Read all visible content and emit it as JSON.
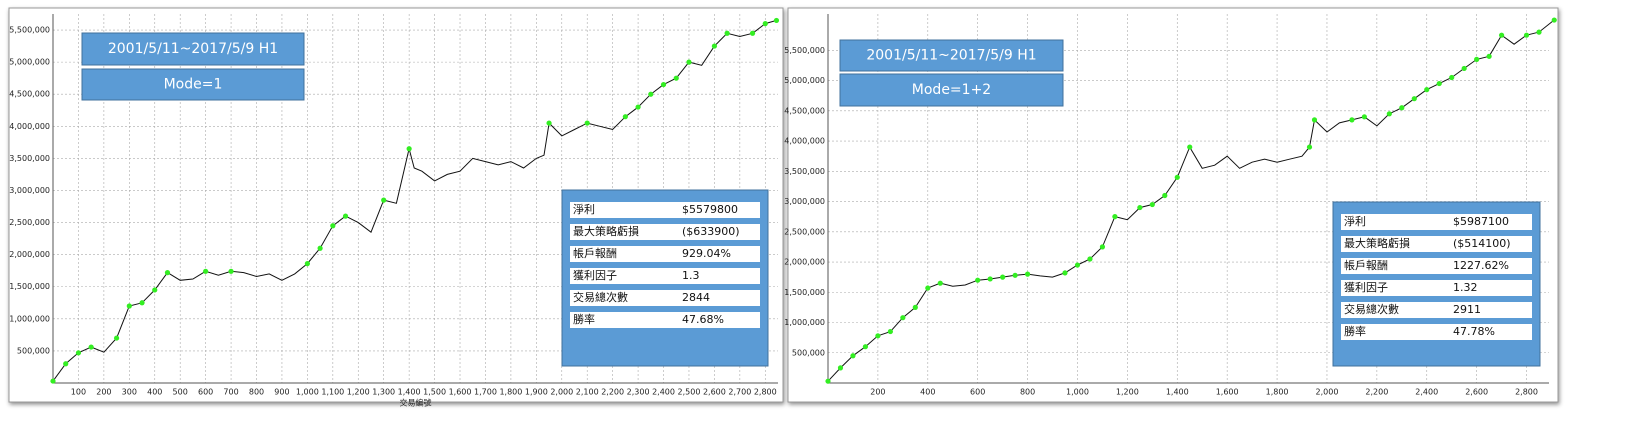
{
  "chart_data": [
    {
      "type": "line",
      "annotations": [
        "2001/5/11~2017/5/9 H1",
        "Mode=1"
      ],
      "x_label": "交易編號",
      "x": [
        0,
        50,
        100,
        150,
        200,
        250,
        300,
        350,
        400,
        450,
        500,
        550,
        600,
        650,
        700,
        750,
        800,
        850,
        900,
        950,
        1000,
        1050,
        1100,
        1150,
        1200,
        1250,
        1300,
        1350,
        1400,
        1420,
        1450,
        1500,
        1550,
        1600,
        1650,
        1700,
        1750,
        1800,
        1850,
        1900,
        1930,
        1950,
        2000,
        2050,
        2100,
        2150,
        2200,
        2250,
        2300,
        2350,
        2400,
        2450,
        2500,
        2550,
        2600,
        2650,
        2700,
        2750,
        2800,
        2844
      ],
      "series": [
        {
          "color": "#111111",
          "new_high_color": "#33ee22",
          "values": [
            30000,
            300000,
            470000,
            560000,
            480000,
            700000,
            1200000,
            1250000,
            1450000,
            1720000,
            1600000,
            1620000,
            1740000,
            1680000,
            1740000,
            1720000,
            1660000,
            1700000,
            1600000,
            1700000,
            1860000,
            2100000,
            2450000,
            2600000,
            2500000,
            2350000,
            2850000,
            2800000,
            3650000,
            3350000,
            3300000,
            3150000,
            3250000,
            3300000,
            3500000,
            3450000,
            3400000,
            3450000,
            3350000,
            3500000,
            3550000,
            4050000,
            3850000,
            3950000,
            4050000,
            4000000,
            3950000,
            4150000,
            4300000,
            4500000,
            4650000,
            4750000,
            5000000,
            4950000,
            5250000,
            5450000,
            5400000,
            5450000,
            5600000,
            5650000
          ]
        }
      ],
      "xlim": [
        0,
        2850
      ],
      "ylim": [
        0,
        5750000
      ],
      "grid": true,
      "xticks": [
        100,
        200,
        300,
        400,
        500,
        600,
        700,
        800,
        900,
        {
          "value": 1000,
          "label": "1,000"
        },
        {
          "value": 1100,
          "label": "1,100"
        },
        {
          "value": 1200,
          "label": "1,200"
        },
        {
          "value": 1300,
          "label": "1,300"
        },
        {
          "value": 1400,
          "label": "1,400"
        },
        {
          "value": 1500,
          "label": "1,500"
        },
        {
          "value": 1600,
          "label": "1,600"
        },
        {
          "value": 1700,
          "label": "1,700"
        },
        {
          "value": 1800,
          "label": "1,800"
        },
        {
          "value": 1900,
          "label": "1,900"
        },
        {
          "value": 2000,
          "label": "2,000"
        },
        {
          "value": 2100,
          "label": "2,100"
        },
        {
          "value": 2200,
          "label": "2,200"
        },
        {
          "value": 2300,
          "label": "2,300"
        },
        {
          "value": 2400,
          "label": "2,400"
        },
        {
          "value": 2500,
          "label": "2,500"
        },
        {
          "value": 2600,
          "label": "2,600"
        },
        {
          "value": 2700,
          "label": "2,700"
        },
        {
          "value": 2800,
          "label": "2,800"
        }
      ],
      "yticks": [
        {
          "value": 500000,
          "label": "500,000"
        },
        {
          "value": 1000000,
          "label": "1,000,000"
        },
        {
          "value": 1500000,
          "label": "1,500,000"
        },
        {
          "value": 2000000,
          "label": "2,000,000"
        },
        {
          "value": 2500000,
          "label": "2,500,000"
        },
        {
          "value": 3000000,
          "label": "3,000,000"
        },
        {
          "value": 3500000,
          "label": "3,500,000"
        },
        {
          "value": 4000000,
          "label": "4,000,000"
        },
        {
          "value": 4500000,
          "label": "4,500,000"
        },
        {
          "value": 5000000,
          "label": "5,000,000"
        },
        {
          "value": 5500000,
          "label": "5,500,000"
        }
      ],
      "stats": [
        [
          "淨利",
          "$5579800"
        ],
        [
          "最大策略虧損",
          "($633900)"
        ],
        [
          "帳戶報酬",
          "929.04%"
        ],
        [
          "獲利因子",
          "1.3"
        ],
        [
          "交易總次數",
          "2844"
        ],
        [
          "勝率",
          "47.68%"
        ]
      ]
    },
    {
      "type": "line",
      "annotations": [
        "2001/5/11~2017/5/9 H1",
        "Mode=1+2"
      ],
      "x": [
        0,
        50,
        100,
        150,
        200,
        250,
        300,
        350,
        400,
        450,
        500,
        550,
        600,
        650,
        700,
        750,
        800,
        850,
        900,
        950,
        1000,
        1050,
        1100,
        1150,
        1200,
        1250,
        1300,
        1350,
        1400,
        1450,
        1500,
        1550,
        1600,
        1650,
        1700,
        1750,
        1800,
        1850,
        1900,
        1930,
        1950,
        2000,
        2050,
        2100,
        2150,
        2200,
        2250,
        2300,
        2350,
        2400,
        2450,
        2500,
        2550,
        2600,
        2650,
        2700,
        2750,
        2800,
        2850,
        2911
      ],
      "series": [
        {
          "color": "#111111",
          "new_high_color": "#33ee22",
          "values": [
            30000,
            250000,
            450000,
            600000,
            780000,
            850000,
            1080000,
            1250000,
            1570000,
            1650000,
            1600000,
            1620000,
            1700000,
            1720000,
            1750000,
            1780000,
            1800000,
            1770000,
            1750000,
            1820000,
            1950000,
            2050000,
            2250000,
            2750000,
            2700000,
            2900000,
            2950000,
            3100000,
            3400000,
            3900000,
            3550000,
            3600000,
            3750000,
            3550000,
            3650000,
            3700000,
            3650000,
            3700000,
            3750000,
            3900000,
            4350000,
            4150000,
            4300000,
            4350000,
            4400000,
            4250000,
            4450000,
            4550000,
            4700000,
            4850000,
            4950000,
            5050000,
            5200000,
            5350000,
            5400000,
            5750000,
            5600000,
            5750000,
            5800000,
            6000000
          ]
        }
      ],
      "xlim": [
        0,
        2890
      ],
      "ylim": [
        0,
        6100000
      ],
      "grid": true,
      "xticks": [
        200,
        400,
        600,
        800,
        {
          "value": 1000,
          "label": "1,000"
        },
        {
          "value": 1200,
          "label": "1,200"
        },
        {
          "value": 1400,
          "label": "1,400"
        },
        {
          "value": 1600,
          "label": "1,600"
        },
        {
          "value": 1800,
          "label": "1,800"
        },
        {
          "value": 2000,
          "label": "2,000"
        },
        {
          "value": 2200,
          "label": "2,200"
        },
        {
          "value": 2400,
          "label": "2,400"
        },
        {
          "value": 2600,
          "label": "2,600"
        },
        {
          "value": 2800,
          "label": "2,800"
        }
      ],
      "yticks": [
        {
          "value": 500000,
          "label": "500,000"
        },
        {
          "value": 1000000,
          "label": "1,000,000"
        },
        {
          "value": 1500000,
          "label": "1,500,000"
        },
        {
          "value": 2000000,
          "label": "2,000,000"
        },
        {
          "value": 2500000,
          "label": "2,500,000"
        },
        {
          "value": 3000000,
          "label": "3,000,000"
        },
        {
          "value": 3500000,
          "label": "3,500,000"
        },
        {
          "value": 4000000,
          "label": "4,000,000"
        },
        {
          "value": 4500000,
          "label": "4,500,000"
        },
        {
          "value": 5000000,
          "label": "5,000,000"
        },
        {
          "value": 5500000,
          "label": "5,500,000"
        }
      ],
      "stats": [
        [
          "淨利",
          "$5987100"
        ],
        [
          "最大策略虧損",
          "($514100)"
        ],
        [
          "帳戶報酬",
          "1227.62%"
        ],
        [
          "獲利因子",
          "1.32"
        ],
        [
          "交易總次數",
          "2911"
        ],
        [
          "勝率",
          "47.78%"
        ]
      ]
    }
  ]
}
